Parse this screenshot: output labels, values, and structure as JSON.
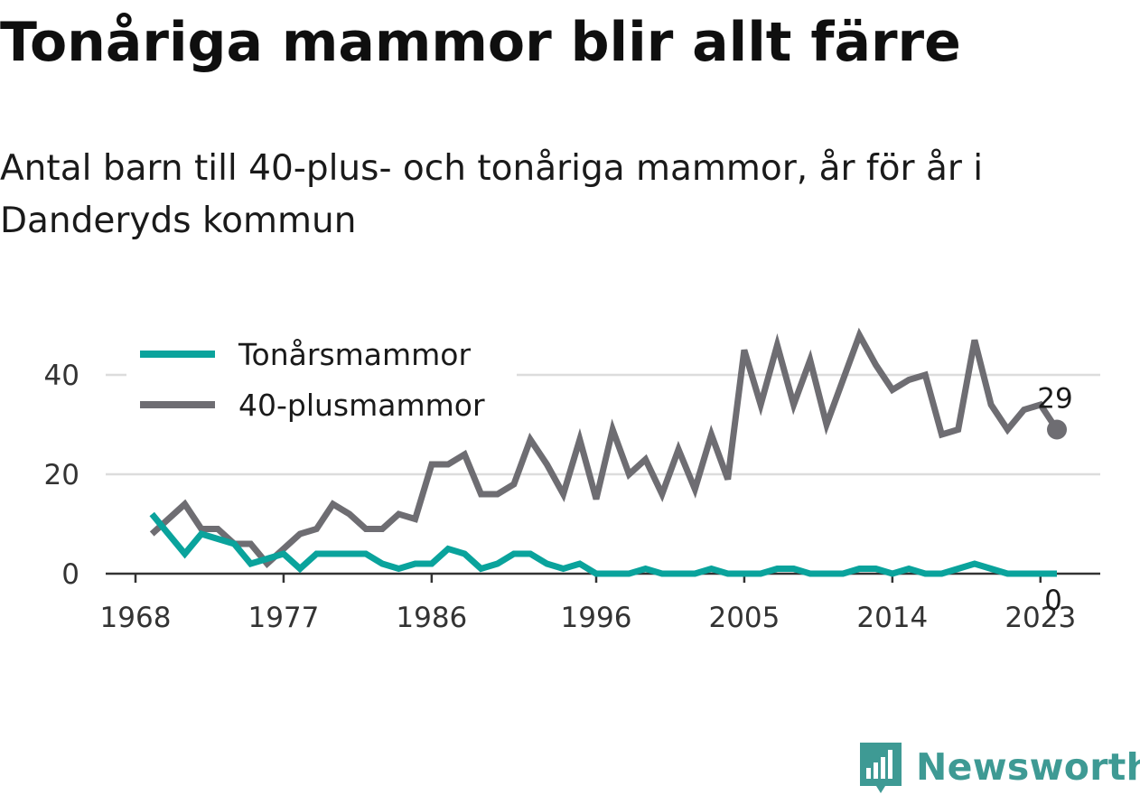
{
  "title": "Tonåriga mammor blir allt färre",
  "subtitle": "Antal barn till 40-plus- och tonåriga mammor, år för år i Danderyds kommun",
  "brand": {
    "name": "Newsworthy",
    "color": "#3e9a94",
    "icon": "bar-chart-speech-bubble-icon"
  },
  "chart_data": {
    "type": "line",
    "x": [
      1969,
      1970,
      1971,
      1972,
      1973,
      1974,
      1975,
      1976,
      1977,
      1978,
      1979,
      1980,
      1981,
      1982,
      1983,
      1984,
      1985,
      1986,
      1987,
      1988,
      1989,
      1990,
      1991,
      1992,
      1993,
      1994,
      1995,
      1996,
      1997,
      1998,
      1999,
      2000,
      2001,
      2002,
      2003,
      2004,
      2005,
      2006,
      2007,
      2008,
      2009,
      2010,
      2011,
      2012,
      2013,
      2014,
      2015,
      2016,
      2017,
      2018,
      2019,
      2020,
      2021,
      2022,
      2023,
      2024
    ],
    "series": [
      {
        "name": "Tonårsmammor",
        "color": "#0aa39c",
        "values": [
          12,
          8,
          4,
          8,
          7,
          6,
          2,
          3,
          4,
          1,
          4,
          4,
          4,
          4,
          2,
          1,
          2,
          2,
          5,
          4,
          1,
          2,
          4,
          4,
          2,
          1,
          2,
          0,
          0,
          0,
          1,
          0,
          0,
          0,
          1,
          0,
          0,
          0,
          1,
          1,
          0,
          0,
          0,
          1,
          1,
          0,
          1,
          0,
          0,
          1,
          2,
          1,
          0,
          0,
          0,
          0
        ]
      },
      {
        "name": "40-plusmammor",
        "color": "#6e6d72",
        "values": [
          8,
          11,
          14,
          9,
          9,
          6,
          6,
          2,
          5,
          8,
          9,
          14,
          12,
          9,
          9,
          12,
          11,
          22,
          22,
          24,
          16,
          16,
          18,
          27,
          22,
          16,
          27,
          15,
          29,
          20,
          23,
          16,
          25,
          17,
          28,
          19,
          45,
          34,
          46,
          34,
          43,
          30,
          39,
          48,
          42,
          37,
          39,
          40,
          28,
          29,
          47,
          34,
          29,
          33,
          34,
          29
        ]
      }
    ],
    "end_labels": [
      "0",
      "29"
    ],
    "xticks": [
      "1968",
      "1977",
      "1986",
      "1996",
      "2005",
      "2014",
      "2023"
    ],
    "yticks": [
      "0",
      "20",
      "40"
    ],
    "xlim": [
      1968,
      2025.5
    ],
    "ylim": [
      0,
      50
    ],
    "grid": true,
    "legend_position": "top-left"
  }
}
